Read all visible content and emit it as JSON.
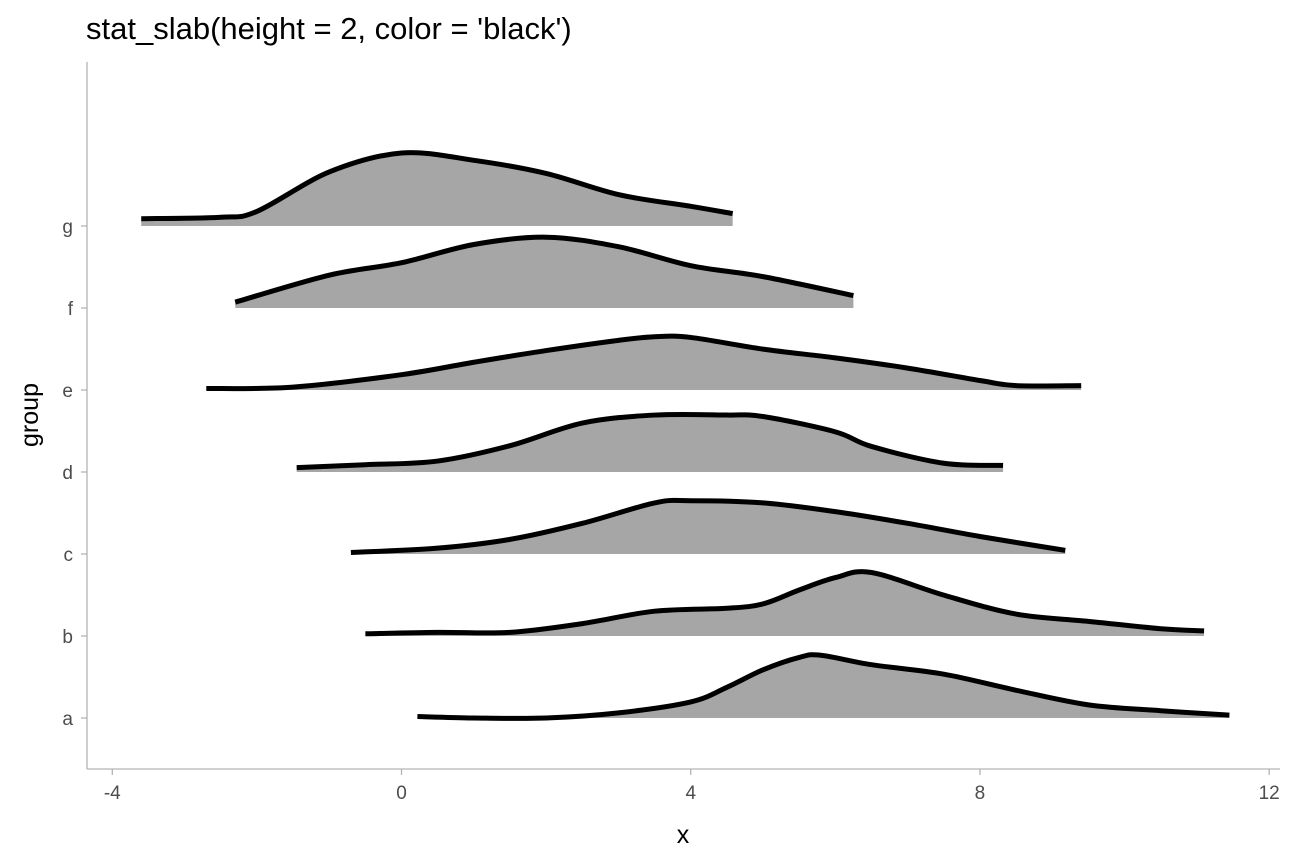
{
  "chart_data": {
    "type": "area",
    "title": "stat_slab(height = 2, color = 'black')",
    "xlabel": "x",
    "ylabel": "group",
    "xlim": [
      -4.35,
      12.15
    ],
    "x_ticks": [
      -4,
      0,
      4,
      8,
      12
    ],
    "x_tick_labels": [
      "-4",
      "0",
      "4",
      "8",
      "12"
    ],
    "categories": [
      "a",
      "b",
      "c",
      "d",
      "e",
      "f",
      "g"
    ],
    "slab_height": 2,
    "grid": false,
    "fill_color": "#a6a6a6",
    "line_color": "#000000",
    "series": [
      {
        "name": "a",
        "x": [
          0.22,
          1.0,
          2.0,
          3.0,
          4.0,
          4.5,
          5.0,
          5.5,
          5.8,
          6.5,
          7.5,
          8.5,
          9.5,
          10.5,
          11.45
        ],
        "y": [
          0.02,
          0.0,
          0.0,
          0.07,
          0.22,
          0.42,
          0.66,
          0.83,
          0.86,
          0.73,
          0.6,
          0.38,
          0.18,
          0.1,
          0.04
        ]
      },
      {
        "name": "b",
        "x": [
          -0.5,
          0.5,
          1.5,
          2.5,
          3.5,
          4.5,
          5.0,
          5.5,
          6.0,
          6.5,
          7.5,
          8.5,
          9.5,
          10.5,
          11.1
        ],
        "y": [
          0.03,
          0.05,
          0.05,
          0.17,
          0.34,
          0.38,
          0.44,
          0.63,
          0.8,
          0.87,
          0.56,
          0.3,
          0.2,
          0.1,
          0.07
        ]
      },
      {
        "name": "c",
        "x": [
          -0.7,
          0.5,
          1.5,
          2.5,
          3.5,
          4.0,
          5.0,
          6.0,
          7.0,
          8.0,
          9.18
        ],
        "y": [
          0.02,
          0.08,
          0.2,
          0.42,
          0.7,
          0.73,
          0.7,
          0.58,
          0.42,
          0.24,
          0.05
        ]
      },
      {
        "name": "d",
        "x": [
          -1.45,
          -0.5,
          0.5,
          1.5,
          2.5,
          3.5,
          4.5,
          5.0,
          6.0,
          6.5,
          7.5,
          8.32
        ],
        "y": [
          0.06,
          0.1,
          0.15,
          0.36,
          0.67,
          0.78,
          0.78,
          0.76,
          0.55,
          0.35,
          0.12,
          0.09
        ]
      },
      {
        "name": "e",
        "x": [
          -2.7,
          -1.5,
          0.0,
          1.0,
          2.0,
          3.0,
          3.5,
          4.0,
          5.0,
          6.0,
          7.0,
          8.0,
          8.5,
          9.4
        ],
        "y": [
          0.02,
          0.04,
          0.21,
          0.38,
          0.54,
          0.68,
          0.73,
          0.72,
          0.56,
          0.44,
          0.3,
          0.13,
          0.06,
          0.06
        ]
      },
      {
        "name": "f",
        "x": [
          -2.3,
          -1.0,
          0.0,
          1.0,
          2.0,
          3.0,
          4.0,
          5.0,
          6.25
        ],
        "y": [
          0.08,
          0.45,
          0.62,
          0.87,
          0.97,
          0.84,
          0.58,
          0.43,
          0.17
        ]
      },
      {
        "name": "g",
        "x": [
          -3.6,
          -2.5,
          -2.0,
          -1.0,
          0.0,
          1.0,
          2.0,
          3.0,
          4.0,
          4.58
        ],
        "y": [
          0.1,
          0.12,
          0.2,
          0.74,
          1.0,
          0.9,
          0.72,
          0.43,
          0.27,
          0.17
        ]
      }
    ]
  }
}
